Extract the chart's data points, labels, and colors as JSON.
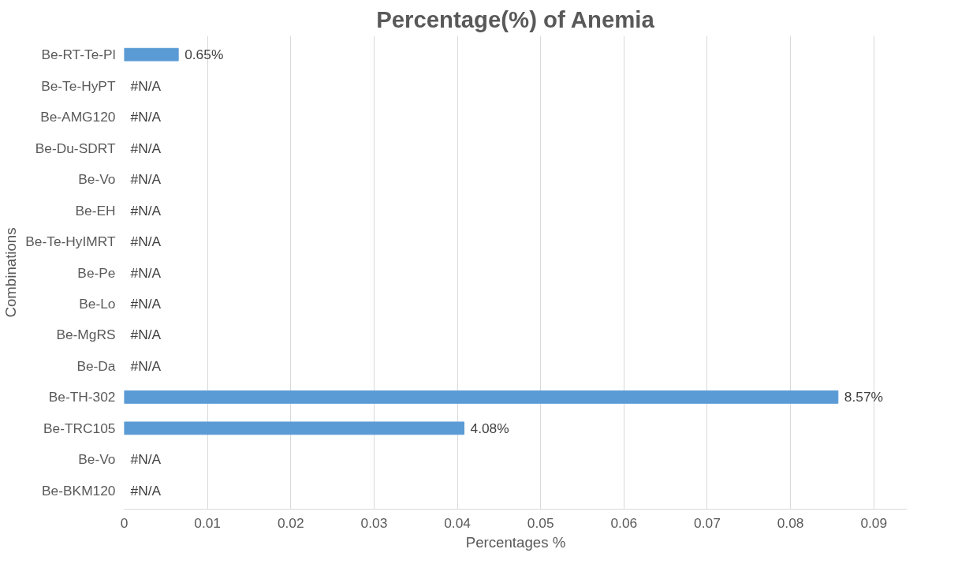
{
  "chart_data": {
    "type": "bar",
    "orientation": "horizontal",
    "title": "Percentage(%) of Anemia",
    "xlabel": "Percentages %",
    "ylabel": "Combinations",
    "categories": [
      "Be-RT-Te-Pl",
      "Be-Te-HyPT",
      "Be-AMG120",
      "Be-Du-SDRT",
      "Be-Vo",
      "Be-EH",
      "Be-Te-HyIMRT",
      "Be-Pe",
      "Be-Lo",
      "Be-MgRS",
      "Be-Da",
      "Be-TH-302",
      "Be-TRC105",
      "Be-Vo",
      "Be-BKM120"
    ],
    "values": [
      0.0065,
      null,
      null,
      null,
      null,
      null,
      null,
      null,
      null,
      null,
      null,
      0.0857,
      0.0408,
      null,
      null
    ],
    "value_labels": [
      "0.65%",
      "#N/A",
      "#N/A",
      "#N/A",
      "#N/A",
      "#N/A",
      "#N/A",
      "#N/A",
      "#N/A",
      "#N/A",
      "#N/A",
      "8.57%",
      "4.08%",
      "#N/A",
      "#N/A"
    ],
    "color": "#5b9bd5",
    "xlim": [
      0,
      0.094
    ],
    "xticks": [
      0,
      0.01,
      0.02,
      0.03,
      0.04,
      0.05,
      0.06,
      0.07,
      0.08,
      0.09
    ],
    "grid": "x"
  }
}
